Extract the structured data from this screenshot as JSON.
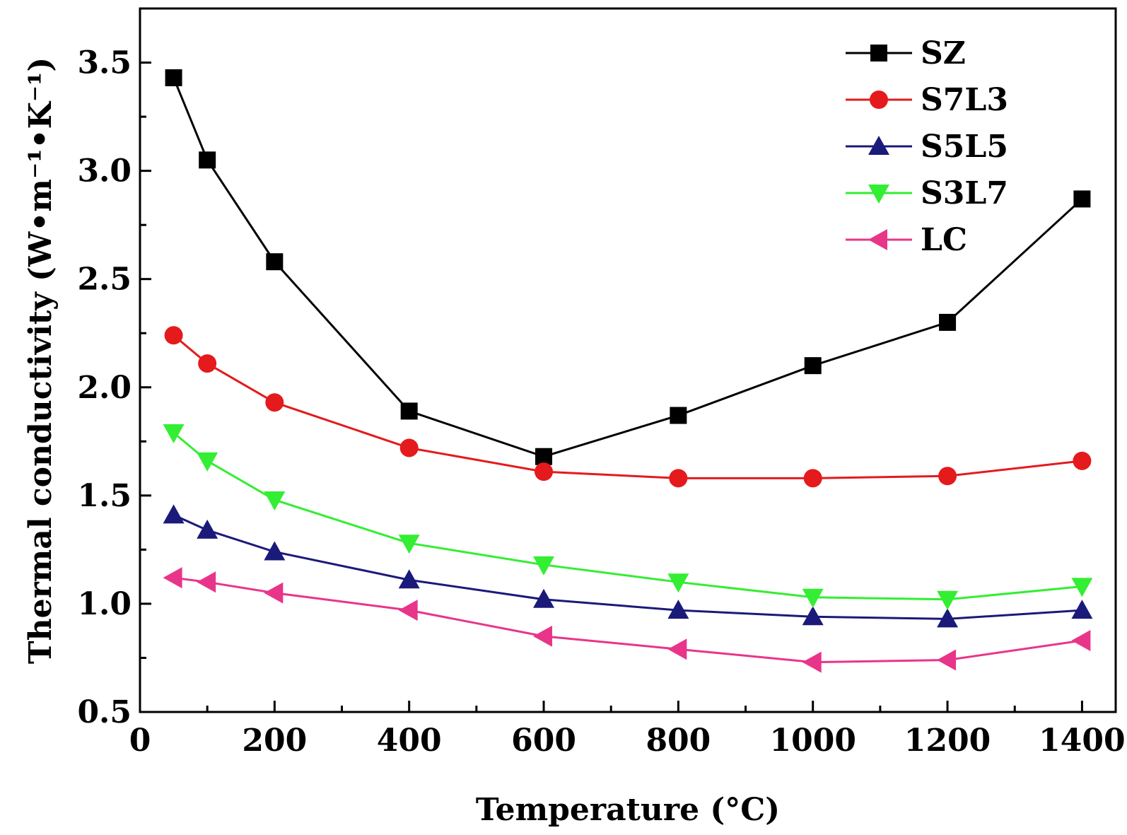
{
  "chart_data": {
    "type": "line",
    "xlabel": "Temperature (°C)",
    "ylabel": "Thermal conductivity (W•m⁻¹•K⁻¹)",
    "xlim": [
      0,
      1450
    ],
    "ylim": [
      0.5,
      3.75
    ],
    "xticks": [
      0,
      200,
      400,
      600,
      800,
      1000,
      1200,
      1400
    ],
    "xtick_labels": [
      "0",
      "200",
      "400",
      "600",
      "800",
      "1000",
      "1200",
      "1400"
    ],
    "yticks": [
      0.5,
      1.0,
      1.5,
      2.0,
      2.5,
      3.0,
      3.5
    ],
    "ytick_labels": [
      "0.5",
      "1.0",
      "1.5",
      "2.0",
      "2.5",
      "3.0",
      "3.5"
    ],
    "grid": false,
    "legend_position": "top-right",
    "x": [
      50,
      100,
      200,
      400,
      600,
      800,
      1000,
      1200,
      1400
    ],
    "series": [
      {
        "name": "SZ",
        "color": "#000000",
        "marker": "square",
        "values": [
          3.43,
          3.05,
          2.58,
          1.89,
          1.68,
          1.87,
          2.1,
          2.3,
          2.87
        ]
      },
      {
        "name": "S7L3",
        "color": "#e41a1c",
        "marker": "circle",
        "values": [
          2.24,
          2.11,
          1.93,
          1.72,
          1.61,
          1.58,
          1.58,
          1.59,
          1.66
        ]
      },
      {
        "name": "S5L5",
        "color": "#1a1a7a",
        "marker": "triangle-up",
        "values": [
          1.41,
          1.34,
          1.24,
          1.11,
          1.02,
          0.97,
          0.94,
          0.93,
          0.97
        ]
      },
      {
        "name": "S3L7",
        "color": "#33ee33",
        "marker": "triangle-down",
        "values": [
          1.79,
          1.66,
          1.48,
          1.28,
          1.18,
          1.1,
          1.03,
          1.02,
          1.08
        ]
      },
      {
        "name": "LC",
        "color": "#e8358a",
        "marker": "triangle-left",
        "values": [
          1.12,
          1.1,
          1.05,
          0.97,
          0.85,
          0.79,
          0.73,
          0.74,
          0.83
        ]
      }
    ]
  }
}
